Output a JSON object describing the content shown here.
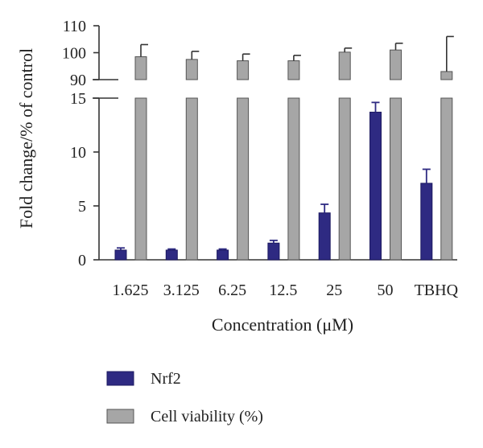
{
  "chart_data": {
    "type": "bar",
    "categories": [
      "1.625",
      "3.125",
      "6.25",
      "12.5",
      "25",
      "50",
      "TBHQ"
    ],
    "series": [
      {
        "name": "Nrf2",
        "values": [
          0.9,
          0.9,
          0.9,
          1.55,
          4.35,
          13.7,
          7.1
        ],
        "error": [
          0.2,
          0.1,
          0.1,
          0.25,
          0.8,
          0.9,
          1.3
        ],
        "color": "#2e2a82"
      },
      {
        "name": "Cell viability (%)",
        "values": [
          98.5,
          97.5,
          97.0,
          97.0,
          100.2,
          101.0,
          93.0
        ],
        "error": [
          4.5,
          3.0,
          2.5,
          2.0,
          1.5,
          2.5,
          13.0
        ],
        "color": "#a6a6a6"
      }
    ],
    "xlabel": "Concentration (μM)",
    "ylabel": "Fold change/% of control",
    "axis_break": true,
    "ylim_lower": [
      0,
      15
    ],
    "yticks_lower": [
      0,
      5,
      10,
      15
    ],
    "ylim_upper": [
      90,
      110
    ],
    "yticks_upper": [
      90,
      100,
      110
    ],
    "legend_position": "bottom-center",
    "grid": false
  }
}
